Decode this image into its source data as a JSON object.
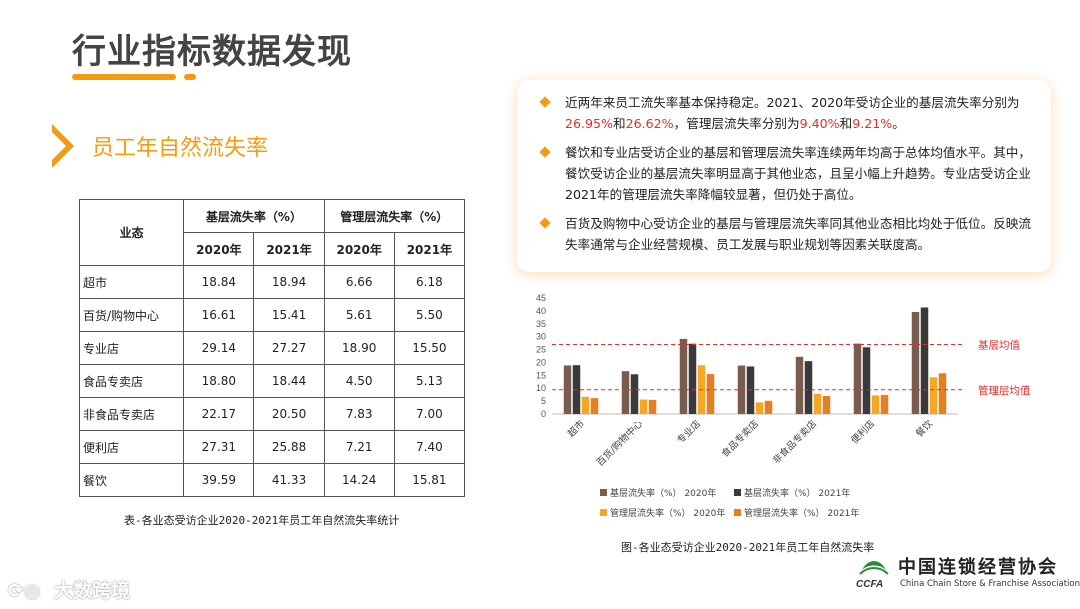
{
  "page_title": "行业指标数据发现",
  "section_title": "员工年自然流失率",
  "table": {
    "header_category": "业态",
    "group_basic": "基层流失率（%）",
    "group_mgmt": "管理层流失率（%）",
    "years": [
      "2020年",
      "2021年",
      "2020年",
      "2021年"
    ],
    "rows": [
      {
        "name": "超市",
        "values": [
          "18.84",
          "18.94",
          "6.66",
          "6.18"
        ]
      },
      {
        "name": "百货/购物中心",
        "values": [
          "16.61",
          "15.41",
          "5.61",
          "5.50"
        ]
      },
      {
        "name": "专业店",
        "values": [
          "29.14",
          "27.27",
          "18.90",
          "15.50"
        ]
      },
      {
        "name": "食品专卖店",
        "values": [
          "18.80",
          "18.44",
          "4.50",
          "5.13"
        ]
      },
      {
        "name": "非食品专卖店",
        "values": [
          "22.17",
          "20.50",
          "7.83",
          "7.00"
        ]
      },
      {
        "name": "便利店",
        "values": [
          "27.31",
          "25.88",
          "7.21",
          "7.40"
        ]
      },
      {
        "name": "餐饮",
        "values": [
          "39.59",
          "41.33",
          "14.24",
          "15.81"
        ]
      }
    ],
    "caption": "表-各业态受访企业2020-2021年员工年自然流失率统计"
  },
  "bullets": {
    "b1_a": "近两年来员工流失率基本保持稳定。2021、2020年受访企业的基层流失率分别为",
    "b1_v1": "26.95%",
    "b1_b": "和",
    "b1_v2": "26.62%",
    "b1_c": "，管理层流失率分别为",
    "b1_v3": "9.40%",
    "b1_d": "和",
    "b1_v4": "9.21%",
    "b1_e": "。",
    "b2": "餐饮和专业店受访企业的基层和管理层流失率连续两年均高于总体均值水平。其中，餐饮受访企业的基层流失率明显高于其他业态，且呈小幅上升趋势。专业店受访企业2021年的管理层流失率降幅较显著，但仍处于高位。",
    "b3": "百货及购物中心受访企业的基层与管理层流失率同其他业态相比均处于低位。反映流失率通常与企业经营规模、员工发展与职业规划等因素关联度高。"
  },
  "chart_data": {
    "type": "bar",
    "categories": [
      "超市",
      "百货/购物中心",
      "专业店",
      "食品专卖店",
      "非食品专卖店",
      "便利店",
      "餐饮"
    ],
    "series": [
      {
        "name": "基层流失率（%） 2020年",
        "values": [
          18.84,
          16.61,
          29.14,
          18.8,
          22.17,
          27.31,
          39.59
        ],
        "color": "#7a5c4f"
      },
      {
        "name": "基层流失率（%） 2021年",
        "values": [
          18.94,
          15.41,
          27.27,
          18.44,
          20.5,
          25.88,
          41.33
        ],
        "color": "#3a3a3a"
      },
      {
        "name": "管理层流失率（%） 2020年",
        "values": [
          6.66,
          5.61,
          18.9,
          4.5,
          7.83,
          7.21,
          14.24
        ],
        "color": "#f5a623"
      },
      {
        "name": "管理层流失率（%） 2021年",
        "values": [
          6.18,
          5.5,
          15.5,
          5.13,
          7.0,
          7.4,
          15.81
        ],
        "color": "#e67e22"
      }
    ],
    "yticks": [
      0,
      5,
      10,
      15,
      20,
      25,
      30,
      35,
      40,
      45
    ],
    "ylim": [
      0,
      45
    ],
    "reference_lines": [
      {
        "label": "基层均值",
        "value": 26.95,
        "color": "#e03030"
      },
      {
        "label": "管理层均值",
        "value": 9.4,
        "color": "#e03030"
      }
    ],
    "legend_position": "bottom",
    "caption": "图-各业态受访企业2020-2021年员工年自然流失率"
  },
  "logo": {
    "cn": "中国连锁经营协会",
    "en": "China Chain Store & Franchise Association",
    "mark": "CCFA"
  },
  "watermark": "大数跨境"
}
